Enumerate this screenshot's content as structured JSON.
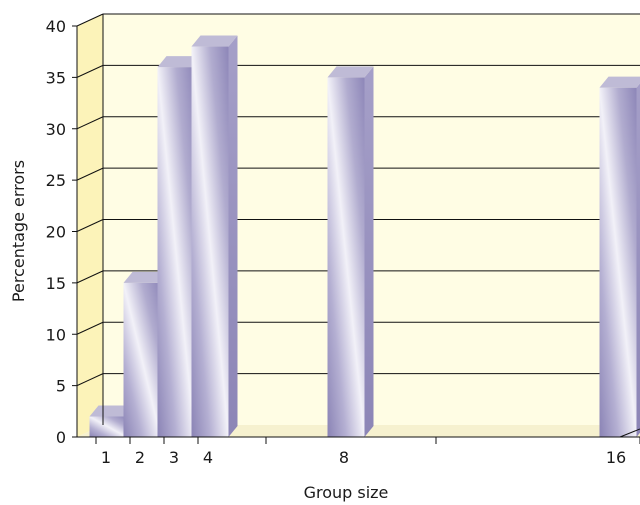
{
  "chart_data": {
    "type": "bar",
    "categories": [
      "1",
      "2",
      "3",
      "4",
      "8",
      "16"
    ],
    "x": [
      1,
      2,
      3,
      4,
      8,
      16
    ],
    "values": [
      2,
      15,
      36,
      38,
      35,
      34
    ],
    "xlabel": "Group size",
    "ylabel": "Percentage errors",
    "ylim": [
      0,
      40
    ],
    "yticks": [
      0,
      5,
      10,
      15,
      20,
      25,
      30,
      35,
      40
    ],
    "grid": true,
    "legend": "none",
    "style": "3d",
    "colors": {
      "wall_back": "#FFFDE4",
      "wall_side": "#FCF3B9",
      "floor": "#F6F1CF",
      "bar_dark": "#8A83B5",
      "bar_light": "#F2F1F8",
      "bar_top": "#BFBBD6",
      "bar_side": "#9992C0",
      "grid": "#111111"
    }
  }
}
